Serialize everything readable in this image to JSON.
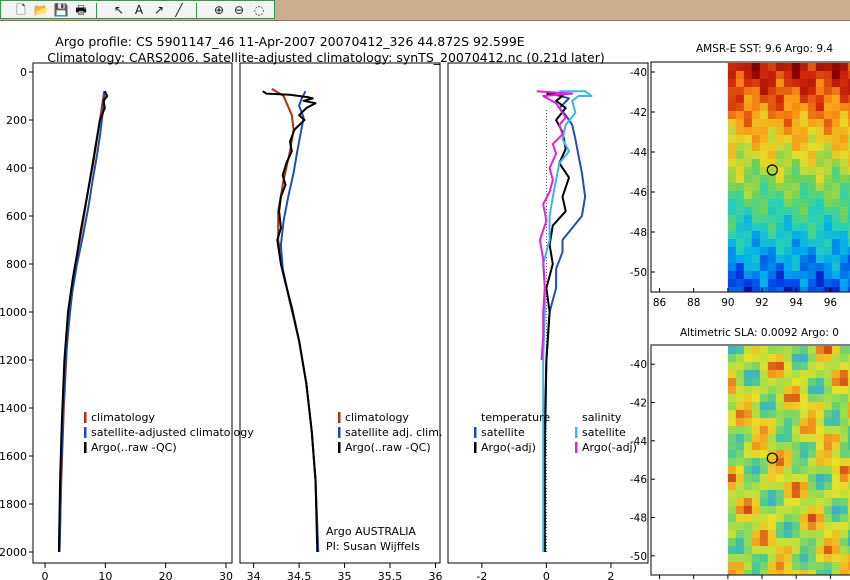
{
  "toolbar": {
    "tools": [
      {
        "name": "new-document-icon",
        "glyph": "🗋"
      },
      {
        "name": "open-folder-icon",
        "glyph": "📂"
      },
      {
        "name": "save-disk-icon",
        "glyph": "💾"
      },
      {
        "name": "print-icon",
        "glyph": "🖶"
      },
      {
        "name": "pointer-arrow-icon",
        "glyph": "↖"
      },
      {
        "name": "text-tool-icon",
        "glyph": "A"
      },
      {
        "name": "arrow-tool-icon",
        "glyph": "↗"
      },
      {
        "name": "line-tool-icon",
        "glyph": "╱"
      },
      {
        "name": "zoom-in-icon",
        "glyph": "⊕"
      },
      {
        "name": "zoom-out-icon",
        "glyph": "⊖"
      },
      {
        "name": "rotate-icon",
        "glyph": "◌"
      }
    ]
  },
  "header": {
    "line1": "Argo profile: CS 5901147_46 11-Apr-2007 20070412_326 44.872S 92.599E",
    "line2": "Climatology: CARS2006. Satellite-adjusted climatology: synTS_20070412.nc (0.21d later)"
  },
  "colors": {
    "climatology": "#b03010",
    "satellite_adjusted": "#1f4fb0",
    "argo": "#000000",
    "salinity_satellite": "#36b8e8",
    "salinity_argo": "#e020e0",
    "map_marker": "#000000"
  },
  "panels": {
    "temperature": {
      "xticks": [
        "0",
        "10",
        "20",
        "30"
      ],
      "legend": [
        "climatology",
        "satellite-adjusted climatology",
        "Argo(..raw -QC)"
      ]
    },
    "salinity": {
      "xticks": [
        "34",
        "34.5",
        "35",
        "35.5",
        "36"
      ],
      "legend": [
        "climatology",
        "satellite adj. clim.",
        "Argo(..raw -QC)"
      ],
      "credit1": "Argo AUSTRALIA",
      "credit2": "PI: Susan Wijffels"
    },
    "difference": {
      "xticks": [
        "-2",
        "0",
        "2"
      ],
      "legend_temp_head": "temperature",
      "legend_temp": [
        "satellite",
        "Argo(-adj)"
      ],
      "legend_sal_head": "salinity",
      "legend_sal": [
        "satellite",
        "Argo(-adj)"
      ]
    },
    "yticks": [
      "0",
      "200",
      "400",
      "600",
      "800",
      "1000",
      "1200",
      "1400",
      "1600",
      "1800",
      "2000"
    ]
  },
  "maps": {
    "sst": {
      "title": "AMSR-E SST: 9.6 Argo: 9.4",
      "yticks": [
        "-40",
        "-42",
        "-44",
        "-46",
        "-48",
        "-50"
      ],
      "xticks": [
        "86",
        "88",
        "90",
        "92",
        "94",
        "96"
      ]
    },
    "sla": {
      "title": "Altimetric SLA: 0.0092 Argo: 0",
      "yticks": [
        "-40",
        "-42",
        "-44",
        "-46",
        "-48",
        "-50"
      ]
    }
  },
  "chart_data": [
    {
      "type": "line",
      "title": "Argo profile: CS 5901147_46 11-Apr-2007 20070412_326 44.872S 92.599E",
      "subtitle": "Climatology: CARS2006. Satellite-adjusted climatology: synTS_20070412.nc (0.21d later)",
      "xlim": [
        -2,
        31
      ],
      "ylim": [
        2050,
        0
      ],
      "series": [
        {
          "name": "climatology",
          "points": [
            [
              9.8,
              80
            ],
            [
              9.4,
              150
            ],
            [
              8.8,
              250
            ],
            [
              8.0,
              380
            ],
            [
              7.1,
              500
            ],
            [
              6.2,
              640
            ],
            [
              5.2,
              780
            ],
            [
              4.4,
              920
            ],
            [
              3.6,
              1150
            ],
            [
              3.1,
              1400
            ],
            [
              2.7,
              1700
            ],
            [
              2.4,
              2000
            ]
          ]
        },
        {
          "name": "satellite-adjusted climatology",
          "points": [
            [
              9.9,
              80
            ],
            [
              9.6,
              160
            ],
            [
              9.2,
              250
            ],
            [
              8.6,
              350
            ],
            [
              7.9,
              450
            ],
            [
              7.2,
              560
            ],
            [
              6.3,
              680
            ],
            [
              5.3,
              800
            ],
            [
              4.5,
              920
            ],
            [
              3.7,
              1100
            ],
            [
              3.1,
              1350
            ],
            [
              2.7,
              1650
            ],
            [
              2.4,
              2000
            ]
          ]
        },
        {
          "name": "Argo(..raw -QC)",
          "points": [
            [
              9.9,
              80
            ],
            [
              10.3,
              100
            ],
            [
              9.7,
              120
            ],
            [
              9.9,
              150
            ],
            [
              9.1,
              200
            ],
            [
              8.7,
              260
            ],
            [
              8.1,
              350
            ],
            [
              7.5,
              440
            ],
            [
              6.8,
              540
            ],
            [
              6.0,
              650
            ],
            [
              5.3,
              760
            ],
            [
              4.6,
              860
            ],
            [
              3.8,
              1000
            ],
            [
              3.2,
              1200
            ],
            [
              2.8,
              1450
            ],
            [
              2.5,
              1700
            ],
            [
              2.3,
              2000
            ]
          ]
        }
      ]
    },
    {
      "type": "line",
      "xlim": [
        33.85,
        36.05
      ],
      "ylim": [
        2050,
        0
      ],
      "series": [
        {
          "name": "climatology",
          "points": [
            [
              34.2,
              70
            ],
            [
              34.33,
              100
            ],
            [
              34.42,
              180
            ],
            [
              34.44,
              240
            ],
            [
              34.4,
              330
            ],
            [
              34.33,
              450
            ],
            [
              34.27,
              580
            ],
            [
              34.27,
              700
            ],
            [
              34.32,
              820
            ],
            [
              34.4,
              960
            ],
            [
              34.5,
              1120
            ],
            [
              34.58,
              1300
            ],
            [
              34.64,
              1500
            ],
            [
              34.68,
              1700
            ],
            [
              34.71,
              2000
            ]
          ]
        },
        {
          "name": "satellite adj. clim.",
          "points": [
            [
              34.57,
              80
            ],
            [
              34.53,
              110
            ],
            [
              34.5,
              140
            ],
            [
              34.55,
              190
            ],
            [
              34.52,
              250
            ],
            [
              34.48,
              330
            ],
            [
              34.44,
              420
            ],
            [
              34.38,
              520
            ],
            [
              34.33,
              620
            ],
            [
              34.3,
              720
            ],
            [
              34.32,
              820
            ],
            [
              34.4,
              960
            ],
            [
              34.5,
              1120
            ],
            [
              34.58,
              1300
            ],
            [
              34.64,
              1500
            ],
            [
              34.68,
              1700
            ],
            [
              34.71,
              2000
            ]
          ]
        },
        {
          "name": "Argo(..raw -QC)",
          "points": [
            [
              34.1,
              80
            ],
            [
              34.14,
              90
            ],
            [
              34.4,
              95
            ],
            [
              34.6,
              105
            ],
            [
              34.65,
              110
            ],
            [
              34.55,
              120
            ],
            [
              34.68,
              130
            ],
            [
              34.58,
              150
            ],
            [
              34.5,
              180
            ],
            [
              34.56,
              200
            ],
            [
              34.45,
              240
            ],
            [
              34.4,
              290
            ],
            [
              34.42,
              330
            ],
            [
              34.36,
              380
            ],
            [
              34.32,
              430
            ],
            [
              34.35,
              470
            ],
            [
              34.3,
              520
            ],
            [
              34.28,
              580
            ],
            [
              34.3,
              650
            ],
            [
              34.26,
              700
            ],
            [
              34.3,
              800
            ],
            [
              34.35,
              880
            ],
            [
              34.42,
              980
            ],
            [
              34.5,
              1120
            ],
            [
              34.58,
              1300
            ],
            [
              34.64,
              1500
            ],
            [
              34.68,
              1700
            ],
            [
              34.7,
              2000
            ]
          ]
        }
      ]
    },
    {
      "type": "line",
      "xlim": [
        -3.05,
        3.15
      ],
      "ylim": [
        2050,
        0
      ],
      "series": [
        {
          "name": "temperature satellite",
          "points": [
            [
              0.2,
              90
            ],
            [
              0.7,
              110
            ],
            [
              0.4,
              150
            ],
            [
              0.6,
              180
            ],
            [
              0.8,
              220
            ],
            [
              0.9,
              280
            ],
            [
              1.0,
              350
            ],
            [
              1.1,
              420
            ],
            [
              1.2,
              520
            ],
            [
              1.1,
              600
            ],
            [
              0.8,
              650
            ],
            [
              0.5,
              700
            ],
            [
              0.5,
              750
            ],
            [
              0.3,
              820
            ],
            [
              0.3,
              900
            ],
            [
              0.1,
              1000
            ],
            [
              0.0,
              1200
            ],
            [
              -0.05,
              1600
            ],
            [
              -0.05,
              2000
            ]
          ]
        },
        {
          "name": "temperature Argo(-adj)",
          "points": [
            [
              0.0,
              90
            ],
            [
              0.5,
              100
            ],
            [
              0.3,
              120
            ],
            [
              0.6,
              150
            ],
            [
              0.3,
              200
            ],
            [
              0.5,
              250
            ],
            [
              0.6,
              320
            ],
            [
              0.4,
              380
            ],
            [
              0.7,
              440
            ],
            [
              0.5,
              520
            ],
            [
              0.6,
              580
            ],
            [
              0.2,
              640
            ],
            [
              0.1,
              720
            ],
            [
              0.2,
              800
            ],
            [
              0.0,
              900
            ],
            [
              0.1,
              1000
            ],
            [
              0.0,
              1200
            ],
            [
              -0.05,
              1500
            ],
            [
              -0.05,
              2000
            ]
          ]
        },
        {
          "name": "salinity satellite",
          "points": [
            [
              0.4,
              80
            ],
            [
              1.2,
              80
            ],
            [
              1.4,
              100
            ],
            [
              1.0,
              100
            ],
            [
              0.8,
              120
            ],
            [
              0.9,
              170
            ],
            [
              0.6,
              220
            ],
            [
              0.5,
              280
            ],
            [
              0.7,
              330
            ],
            [
              0.4,
              380
            ],
            [
              0.3,
              450
            ],
            [
              0.2,
              520
            ],
            [
              0.1,
              600
            ],
            [
              0.1,
              700
            ],
            [
              -0.1,
              800
            ],
            [
              -0.05,
              900
            ],
            [
              -0.05,
              1000
            ],
            [
              -0.1,
              1200
            ],
            [
              -0.1,
              1600
            ],
            [
              -0.1,
              2000
            ]
          ]
        },
        {
          "name": "salinity Argo(-adj)",
          "points": [
            [
              -0.3,
              80
            ],
            [
              0.8,
              90
            ],
            [
              -0.1,
              100
            ],
            [
              0.3,
              130
            ],
            [
              0.5,
              170
            ],
            [
              0.6,
              190
            ],
            [
              0.4,
              220
            ],
            [
              0.5,
              260
            ],
            [
              0.2,
              300
            ],
            [
              0.3,
              340
            ],
            [
              0.1,
              400
            ],
            [
              0.2,
              450
            ],
            [
              0.1,
              500
            ],
            [
              -0.1,
              550
            ],
            [
              0.0,
              620
            ],
            [
              -0.2,
              700
            ],
            [
              -0.1,
              780
            ],
            [
              -0.05,
              900
            ],
            [
              -0.1,
              1000
            ],
            [
              -0.1,
              1100
            ],
            [
              -0.15,
              1200
            ]
          ]
        }
      ]
    },
    {
      "type": "heatmap",
      "title": "AMSR-E SST: 9.6 Argo: 9.4",
      "xlim": [
        85.5,
        97.5
      ],
      "ylim": [
        -51,
        -39.5
      ],
      "marker": [
        92.6,
        -44.9
      ]
    },
    {
      "type": "heatmap",
      "title": "Altimetric SLA: 0.0092 Argo: 0",
      "ylim": [
        -51,
        -39
      ],
      "marker": [
        92.6,
        -44.9
      ]
    }
  ]
}
